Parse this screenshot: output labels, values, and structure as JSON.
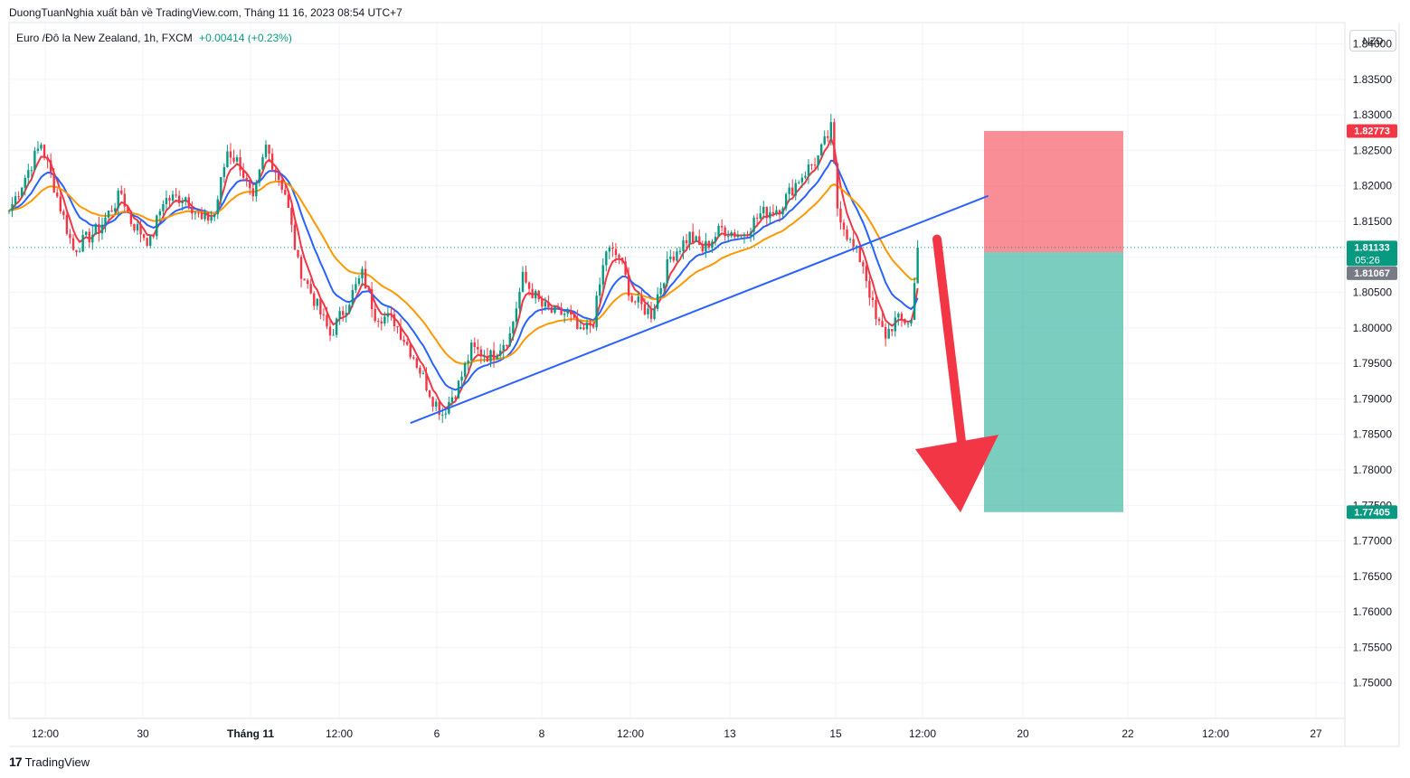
{
  "header": {
    "publisher": "DuongTuanNghia xuất bản về TradingView.com, Tháng 11 16, 2023 08:54 UTC+7",
    "symbol": "Euro /Đô la New Zealand, 1h, FXCM",
    "change": "+0.00414 (+0.23%)",
    "currency": "NZD"
  },
  "footer": {
    "logo_mark": "17",
    "logo_text": "TradingView"
  },
  "colors": {
    "up": "#089981",
    "down": "#f23645",
    "ema_fast": "#f23645",
    "ema_mid": "#2962ff",
    "ema_slow": "#ff9800",
    "trendline": "#2962ff",
    "stop_zone": "#f7525f",
    "target_zone": "#22ab94",
    "arrow": "#f23645"
  },
  "chart_data": {
    "type": "candlestick",
    "title": "",
    "symbol": "EURNZD",
    "timeframe": "1h",
    "ylim": [
      1.745,
      1.843
    ],
    "y_ticks": [
      "1.84000",
      "1.83500",
      "1.83000",
      "1.82500",
      "1.82000",
      "1.81500",
      "1.81000",
      "1.80500",
      "1.80000",
      "1.79500",
      "1.79000",
      "1.78500",
      "1.78000",
      "1.77500",
      "1.77000",
      "1.76500",
      "1.76000",
      "1.75500",
      "1.75000"
    ],
    "x_ticks": [
      "12:00",
      "30",
      "Tháng 11",
      "12:00",
      "6",
      "8",
      "12:00",
      "13",
      "15",
      "12:00",
      "20",
      "22",
      "12:00",
      "27"
    ],
    "price_path": [
      [
        0,
        1.8165
      ],
      [
        10,
        1.826
      ],
      [
        14,
        1.82
      ],
      [
        20,
        1.811
      ],
      [
        28,
        1.814
      ],
      [
        35,
        1.819
      ],
      [
        38,
        1.815
      ],
      [
        44,
        1.812
      ],
      [
        48,
        1.818
      ],
      [
        55,
        1.8185
      ],
      [
        60,
        1.815
      ],
      [
        64,
        1.816
      ],
      [
        68,
        1.825
      ],
      [
        72,
        1.823
      ],
      [
        76,
        1.8175
      ],
      [
        80,
        1.8255
      ],
      [
        86,
        1.819
      ],
      [
        90,
        1.809
      ],
      [
        95,
        1.804
      ],
      [
        100,
        1.799
      ],
      [
        106,
        1.804
      ],
      [
        110,
        1.8075
      ],
      [
        114,
        1.802
      ],
      [
        120,
        1.801
      ],
      [
        126,
        1.796
      ],
      [
        132,
        1.79
      ],
      [
        135,
        1.788
      ],
      [
        140,
        1.792
      ],
      [
        144,
        1.797
      ],
      [
        150,
        1.796
      ],
      [
        156,
        1.799
      ],
      [
        160,
        1.807
      ],
      [
        166,
        1.803
      ],
      [
        170,
        1.802
      ],
      [
        174,
        1.802
      ],
      [
        178,
        1.799
      ],
      [
        182,
        1.801
      ],
      [
        186,
        1.811
      ],
      [
        190,
        1.81
      ],
      [
        194,
        1.804
      ],
      [
        200,
        1.802
      ],
      [
        206,
        1.81
      ],
      [
        212,
        1.813
      ],
      [
        216,
        1.811
      ],
      [
        222,
        1.814
      ],
      [
        228,
        1.813
      ],
      [
        234,
        1.816
      ],
      [
        240,
        1.817
      ],
      [
        246,
        1.821
      ],
      [
        252,
        1.824
      ],
      [
        256,
        1.828
      ],
      [
        258,
        1.817
      ],
      [
        262,
        1.812
      ],
      [
        266,
        1.809
      ],
      [
        270,
        1.801
      ],
      [
        273,
        1.799
      ],
      [
        276,
        1.801
      ],
      [
        281,
        1.801
      ],
      [
        283,
        1.8113
      ]
    ],
    "last_price": 1.81133,
    "last_price_label": "1.81133",
    "countdown": "05:26",
    "prev_close_label": "1.81067",
    "trendline": {
      "from": [
        125,
        1.7866
      ],
      "to": [
        305,
        1.8186
      ]
    },
    "position": {
      "direction": "short",
      "entry": 1.81067,
      "stop": 1.82773,
      "stop_label": "1.82773",
      "target": 1.77405,
      "target_label": "1.77405"
    },
    "arrow": {
      "from_price": 1.8125,
      "to_price": 1.774
    },
    "grid": true,
    "moving_averages": [
      "fast-red",
      "mid-blue",
      "slow-orange"
    ]
  }
}
